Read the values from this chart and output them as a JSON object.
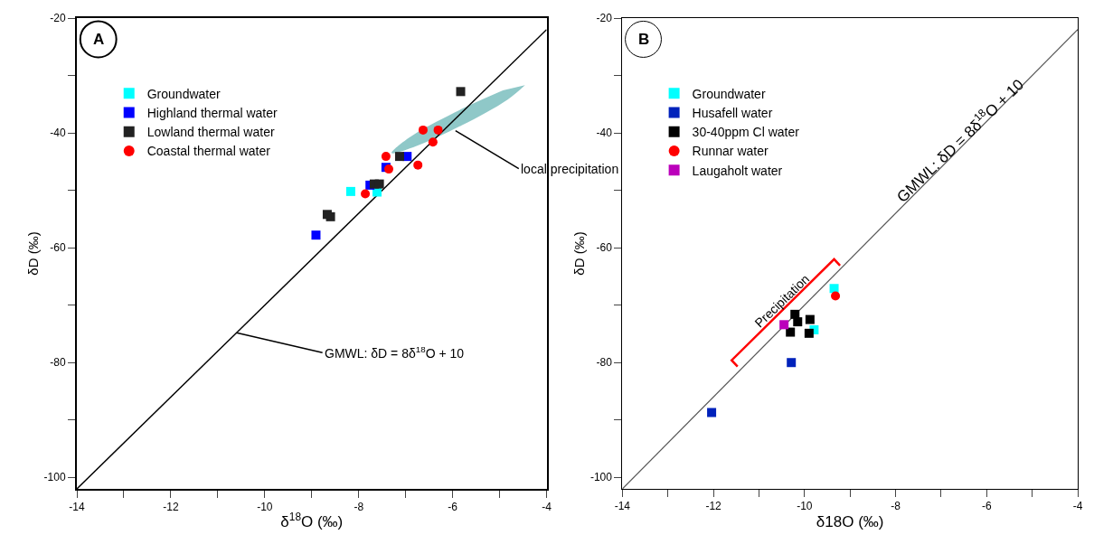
{
  "chart_data": [
    {
      "type": "scatter",
      "xlabel": "δ$^{18}$O (‰)",
      "ylabel": "δD (‰)",
      "xlim": [
        -14,
        -4
      ],
      "ylim": [
        -102,
        -20
      ],
      "xticks": [
        -14,
        {
          "value": -13,
          "label": null
        },
        -12,
        {
          "value": -11,
          "label": null
        },
        -10,
        {
          "value": -9,
          "label": null
        },
        -8,
        {
          "value": -7,
          "label": null
        },
        -6,
        {
          "value": -5,
          "label": null
        },
        -4
      ],
      "yticks": [
        -20,
        {
          "value": -30,
          "label": null
        },
        -40,
        {
          "value": -50,
          "label": null
        },
        -60,
        {
          "value": -70,
          "label": null
        },
        -80,
        {
          "value": -90,
          "label": null
        },
        -100
      ],
      "legend": "top left",
      "annotations": [
        "A",
        {
          "text": "GMWL: δD = 8δ$^{18}$O + 10",
          "x": -10.6,
          "y": -74.8
        },
        {
          "text": "local precipitation",
          "x": -5.94,
          "y": -39.6
        }
      ],
      "series": [
        {
          "type": "area",
          "color": "#8fc8c8",
          "x": [
            -4.46,
            -4.83,
            -5.81,
            -6.84,
            -7.3,
            -6.94,
            -5.95,
            -4.93
          ],
          "values": [
            -31.7,
            -34.2,
            -38.7,
            -42.5,
            -43.5,
            -40.9,
            -36.4,
            -32.6
          ]
        },
        {
          "type": "line",
          "color": "#000000",
          "x": [
            -14,
            -4
          ],
          "values": [
            -102,
            -22
          ]
        },
        {
          "name": "Groundwater",
          "color": "#00ffff",
          "marker": "square",
          "x": [
            -8.17,
            -7.61
          ],
          "values": [
            -50.2,
            -50.3
          ]
        },
        {
          "name": "Highland thermal water",
          "color": "#0000ff",
          "marker": "square",
          "x": [
            -8.91,
            -7.42,
            -6.97,
            -7.76
          ],
          "values": [
            -57.8,
            -46.0,
            -44.1,
            -49.1
          ]
        },
        {
          "name": "Lowland thermal water",
          "color": "#222222",
          "marker": "square",
          "x": [
            -5.83,
            -7.13,
            -7.67,
            -7.56,
            -8.6,
            -8.67
          ],
          "values": [
            -32.8,
            -44.1,
            -48.9,
            -48.9,
            -54.6,
            -54.2
          ]
        },
        {
          "name": "Coastal thermal water",
          "color": "#ff0000",
          "marker": "circle",
          "x": [
            -6.63,
            -6.31,
            -6.42,
            -7.42,
            -7.36,
            -6.74,
            -7.86
          ],
          "values": [
            -39.5,
            -39.5,
            -41.6,
            -44.1,
            -46.3,
            -45.6,
            -50.6
          ]
        }
      ]
    },
    {
      "type": "scatter",
      "xlabel": "δ18O (‰)",
      "ylabel": "δD (‰)",
      "xlim": [
        -14,
        -4
      ],
      "ylim": [
        -102,
        -20
      ],
      "xticks": [
        -14,
        {
          "value": -13,
          "label": null
        },
        -12,
        {
          "value": -11,
          "label": null
        },
        -10,
        {
          "value": -9,
          "label": null
        },
        -8,
        {
          "value": -7,
          "label": null
        },
        -6,
        {
          "value": -5,
          "label": null
        },
        -4
      ],
      "yticks": [
        -20,
        {
          "value": -30,
          "label": null
        },
        -40,
        {
          "value": -50,
          "label": null
        },
        -60,
        {
          "value": -70,
          "label": null
        },
        -80,
        {
          "value": -90,
          "label": null
        },
        -100
      ],
      "legend": "top left",
      "annotations": [
        "B",
        "GMWL: δD = 8δ$^{18}$O + 10",
        "Precipitation"
      ],
      "series": [
        {
          "type": "line",
          "color": "#555555",
          "x": [
            -14,
            -4
          ],
          "values": [
            -102,
            -22
          ]
        },
        {
          "type": "line",
          "color": "#ff0000",
          "x": [
            -11.47,
            -11.6,
            -9.35,
            -9.22
          ],
          "values": [
            -80.7,
            -79.6,
            -62.0,
            -63.1
          ]
        },
        {
          "name": "Groundwater",
          "color": "#00ffff",
          "marker": "square",
          "x": [
            -9.35,
            -9.79
          ],
          "values": [
            -67.1,
            -74.3
          ]
        },
        {
          "name": "Husafell water",
          "color": "#0022bb",
          "marker": "square",
          "x": [
            -10.29,
            -12.04
          ],
          "values": [
            -80.0,
            -88.7
          ]
        },
        {
          "name": "30-40ppm Cl water",
          "color": "#000000",
          "marker": "square",
          "x": [
            -10.21,
            -10.15,
            -9.88,
            -10.31,
            -9.9
          ],
          "values": [
            -71.6,
            -72.9,
            -72.5,
            -74.7,
            -74.9
          ]
        },
        {
          "name": "Runnar water",
          "color": "#ff0000",
          "marker": "circle",
          "x": [
            -9.32
          ],
          "values": [
            -68.4
          ]
        },
        {
          "name": "Laugaholt water",
          "color": "#bb00bb",
          "marker": "square",
          "x": [
            -10.45
          ],
          "values": [
            -73.4
          ]
        }
      ]
    }
  ]
}
